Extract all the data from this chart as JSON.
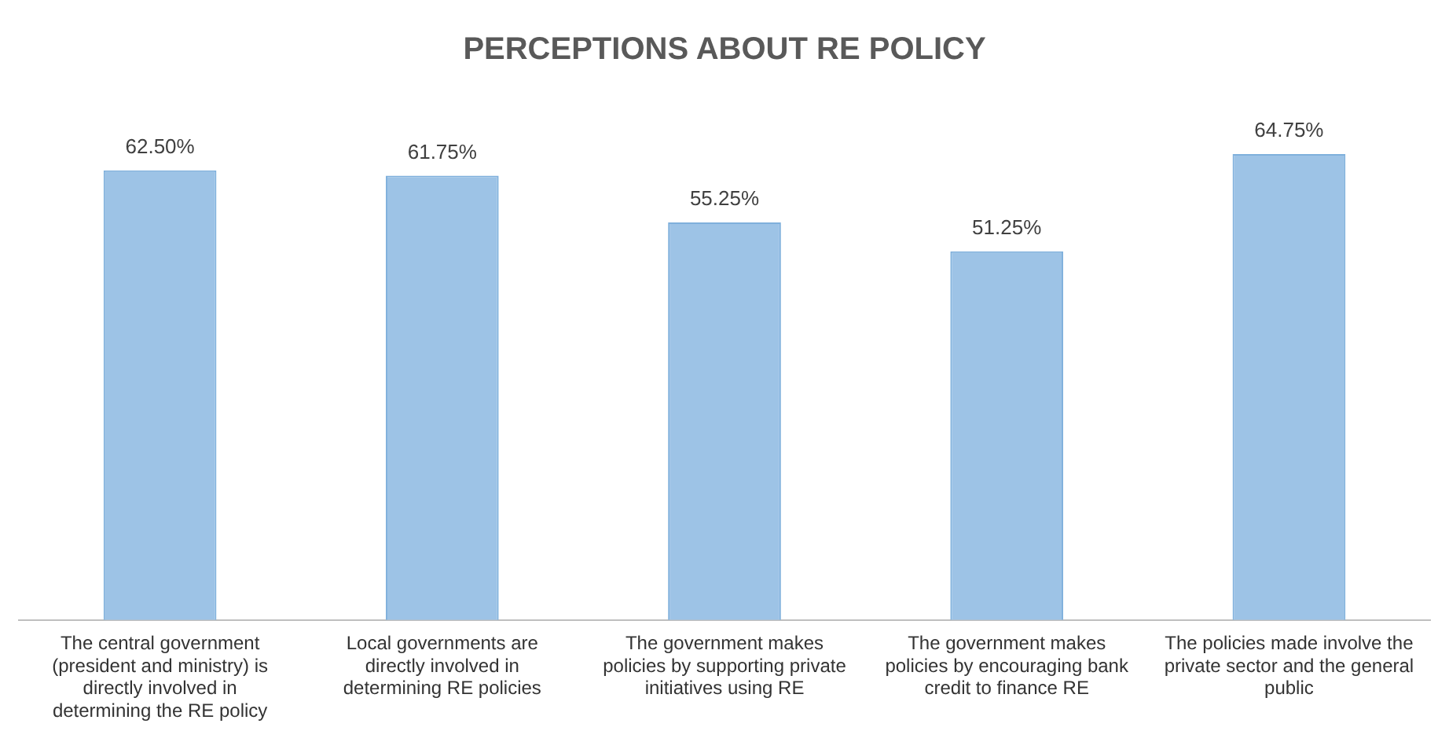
{
  "chart_data": {
    "type": "bar",
    "title": "PERCEPTIONS ABOUT RE POLICY",
    "categories": [
      "The central government (president and ministry) is directly involved in determining the RE policy",
      "Local governments are directly involved in determining RE policies",
      "The government makes policies by supporting private initiatives using RE",
      "The government makes policies by encouraging bank credit to finance RE",
      "The policies made involve the private sector and the general public"
    ],
    "values": [
      62.5,
      61.75,
      55.25,
      51.25,
      64.75
    ],
    "value_labels": [
      "62.50%",
      "61.75%",
      "55.25%",
      "51.25%",
      "64.75%"
    ],
    "color": "#9dc3e6",
    "grid": false,
    "legend": false
  }
}
